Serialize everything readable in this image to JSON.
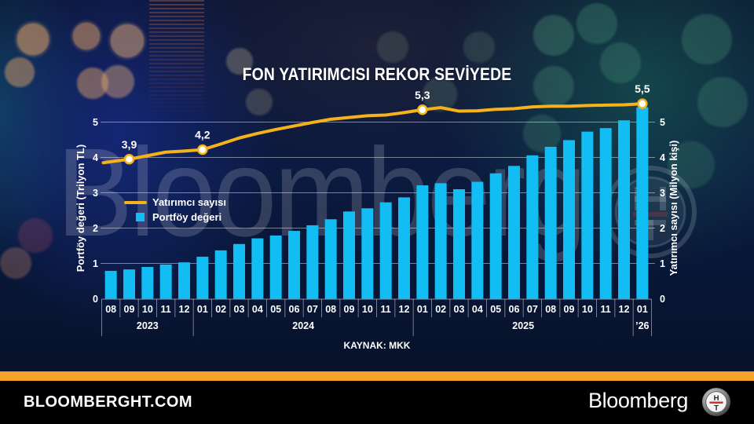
{
  "header": {
    "title": "FON YATIRIMCISI REKOR SEVİYEDE"
  },
  "watermark": {
    "text": "Bloomberg",
    "logo_top": "H",
    "logo_bottom": "T"
  },
  "axes": {
    "left_title": "Portföy değeri (Trilyon TL)",
    "right_title": "Yatırımcı sayısı (Milyon kişi)"
  },
  "legend": {
    "items": [
      {
        "label": "Yatırımcı sayısı",
        "kind": "line"
      },
      {
        "label": "Portföy değeri",
        "kind": "bar"
      }
    ]
  },
  "source": "KAYNAK: MKK",
  "footer": {
    "site": "BLOOMBERGHT.COM",
    "brand": "Bloomberg",
    "logo_top": "H",
    "logo_bottom": "T"
  },
  "colors": {
    "bar": "#12BDF4",
    "line": "#F6B21A",
    "marker_fill": "#FFFFFF",
    "orange_bar": "#F5A12A",
    "footer_bg": "#000000",
    "grid": "rgba(255,255,255,0.45)"
  },
  "chart_data": {
    "type": "bar",
    "title": "FON YATIRIMCISI REKOR SEVİYEDE",
    "xlabel": "",
    "ylabel": "Portföy değeri (Trilyon TL)",
    "y2label": "Yatırımcı sayısı (Milyon kişi)",
    "ylim": [
      0,
      5.6
    ],
    "y2lim": [
      0,
      5.6
    ],
    "yticks": [
      0,
      1,
      2,
      3,
      4,
      5
    ],
    "y2ticks": [
      0,
      1,
      2,
      3,
      4,
      5
    ],
    "grid": true,
    "legend_position": "inside upper left",
    "categories": [
      "08",
      "09",
      "10",
      "11",
      "12",
      "01",
      "02",
      "03",
      "04",
      "05",
      "06",
      "07",
      "08",
      "09",
      "10",
      "11",
      "12",
      "01",
      "02",
      "03",
      "04",
      "05",
      "06",
      "07",
      "08",
      "09",
      "10",
      "11",
      "12",
      "01"
    ],
    "year_groups": [
      {
        "label": "2023",
        "span": 5
      },
      {
        "label": "2024",
        "span": 12
      },
      {
        "label": "2025",
        "span": 12
      },
      {
        "label": "’26",
        "span": 1
      }
    ],
    "series": [
      {
        "name": "Portföy değeri",
        "type": "bar",
        "axis": "left",
        "unit": "Trilyon TL",
        "values": [
          0.79,
          0.83,
          0.9,
          0.97,
          1.03,
          1.19,
          1.37,
          1.55,
          1.71,
          1.79,
          1.92,
          2.08,
          2.25,
          2.47,
          2.56,
          2.73,
          2.87,
          3.21,
          3.27,
          3.1,
          3.31,
          3.55,
          3.76,
          4.06,
          4.3,
          4.49,
          4.73,
          4.83,
          5.05,
          5.42
        ]
      },
      {
        "name": "Yatırımcı sayısı",
        "type": "line",
        "axis": "right",
        "unit": "Milyon kişi",
        "values": [
          3.85,
          3.95,
          4.05,
          4.15,
          4.18,
          4.22,
          4.38,
          4.55,
          4.68,
          4.79,
          4.89,
          4.99,
          5.08,
          5.13,
          5.18,
          5.2,
          5.27,
          5.35,
          5.41,
          5.31,
          5.32,
          5.36,
          5.38,
          5.43,
          5.45,
          5.45,
          5.47,
          5.48,
          5.49,
          5.52
        ]
      }
    ],
    "annotations": [
      {
        "series": "Yatırımcı sayısı",
        "index": 1,
        "label": "3,9"
      },
      {
        "series": "Yatırımcı sayısı",
        "index": 5,
        "label": "4,2"
      },
      {
        "series": "Yatırımcı sayısı",
        "index": 17,
        "label": "5,3"
      },
      {
        "series": "Yatırımcı sayısı",
        "index": 29,
        "label": "5,5"
      }
    ],
    "source": "KAYNAK: MKK"
  }
}
